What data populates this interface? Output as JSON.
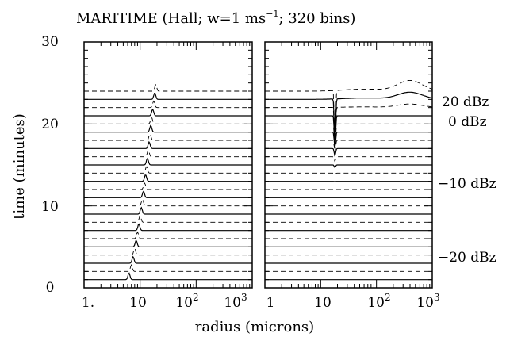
{
  "chart_data": {
    "type": "line",
    "title_parts": [
      "MARITIME (Hall; w=1 ms",
      "−1",
      "; 320 bins)"
    ],
    "xlabel": "radius (microns)",
    "ylabel": "time (minutes)",
    "xscale": "log",
    "xlim": [
      1,
      1000
    ],
    "ylim": [
      0,
      30
    ],
    "y_ticks": [
      "0",
      "10",
      "20",
      "30"
    ],
    "left_x_ticks": [
      "1.",
      "10",
      "10",
      "10"
    ],
    "right_x_ticks": [
      "1",
      "10",
      "10",
      "10"
    ],
    "x_tick_exponents": [
      "",
      "",
      "2",
      "3"
    ],
    "time_levels_min": [
      1,
      2,
      3,
      4,
      5,
      6,
      7,
      8,
      9,
      10,
      11,
      12,
      13,
      14,
      15,
      16,
      17,
      18,
      19,
      20,
      21,
      22,
      23,
      24
    ],
    "line_styles": [
      "solid",
      "dashed"
    ],
    "panels": [
      {
        "name": "left",
        "peak_radius_by_time": [
          [
            0.5,
            6
          ],
          [
            2,
            7
          ],
          [
            4,
            8
          ],
          [
            6,
            9
          ],
          [
            8,
            10
          ],
          [
            10,
            11
          ],
          [
            12,
            12
          ],
          [
            14,
            13
          ],
          [
            16,
            14
          ],
          [
            18,
            15
          ],
          [
            20,
            16
          ],
          [
            22,
            17.5
          ],
          [
            24,
            19
          ]
        ],
        "peak_height_min": 0.8
      },
      {
        "name": "right",
        "dip_radius": 18,
        "dip_depth_min": 6.5,
        "large_drop_radius": 400,
        "large_drop_bump_max_min": 1.3
      }
    ],
    "dbz_labels": [
      {
        "text": "20 dBz",
        "time": 21.0
      },
      {
        "text": "0 dBz",
        "time": 18.8
      },
      {
        "text": "−10 dBz",
        "time": 11.8
      },
      {
        "text": "−20 dBz",
        "time": 3.3
      }
    ]
  }
}
